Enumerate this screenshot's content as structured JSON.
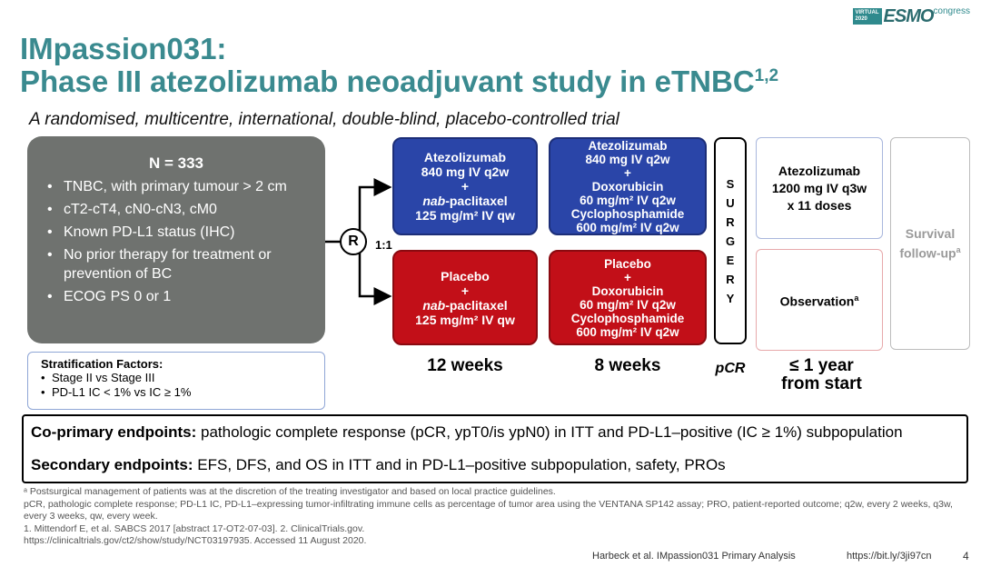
{
  "header": {
    "title_line1": "IMpassion031:",
    "title_line2": "Phase III atezolizumab neoadjuvant study in eTNBC",
    "title_sup": "1,2",
    "subtitle": "A randomised, multicentre, international, double-blind, placebo-controlled trial",
    "logo": {
      "tag_line1": "VIRTUAL",
      "tag_line2": "2020",
      "brand": "ESMO",
      "suffix": "congress"
    }
  },
  "patients": {
    "n": "N = 333",
    "criteria": [
      "TNBC, with primary tumour > 2 cm",
      "cT2-cT4, cN0-cN3, cM0",
      "Known PD-L1 status (IHC)",
      "No prior therapy for treatment or prevention of BC",
      "ECOG PS 0 or 1"
    ]
  },
  "stratification": {
    "heading": "Stratification Factors:",
    "items": [
      "Stage II vs Stage III",
      "PD-L1 IC < 1% vs IC ≥ 1%"
    ]
  },
  "randomisation": {
    "label": "R",
    "ratio": "1:1"
  },
  "arms": {
    "atezo_phase1": {
      "drug": "Atezolizumab",
      "dose": "840 mg IV q2w",
      "plus": "+",
      "drug2_italic": "nab",
      "drug2_rest": "-paclitaxel",
      "dose2": "125 mg/m² IV qw"
    },
    "atezo_phase2": {
      "drug": "Atezolizumab",
      "dose": "840 mg IV q2w",
      "plus": "+",
      "drug2": "Doxorubicin",
      "dose2": "60 mg/m² IV q2w",
      "drug3": "Cyclophosphamide",
      "dose3": "600 mg/m² IV q2w"
    },
    "placebo_phase1": {
      "drug": "Placebo",
      "plus": "+",
      "drug2_italic": "nab",
      "drug2_rest": "-paclitaxel",
      "dose2": "125 mg/m² IV qw"
    },
    "placebo_phase2": {
      "drug": "Placebo",
      "plus": "+",
      "drug2": "Doxorubicin",
      "dose2": "60 mg/m² IV q2w",
      "drug3": "Cyclophosphamide",
      "dose3": "600 mg/m² IV q2w"
    },
    "surgery_letters": [
      "S",
      "U",
      "R",
      "G",
      "E",
      "R",
      "Y"
    ],
    "atezo_adjuvant": {
      "line1": "Atezolizumab",
      "line2": "1200 mg IV q3w",
      "line3": "x 11 doses"
    },
    "observation": {
      "label": "Observation",
      "sup": "a"
    },
    "survival": {
      "line1": "Survival",
      "line2": "follow-up",
      "sup": "a"
    }
  },
  "durations": {
    "phase1": "12 weeks",
    "phase2": "8 weeks",
    "pcr": "pCR",
    "adjuvant_line1": "≤ 1 year",
    "adjuvant_line2": "from start"
  },
  "endpoints": {
    "primary_label": "Co-primary endpoints:",
    "primary_text": " pathologic complete response (pCR, ypT0/is ypN0) in ITT and PD-L1–positive (IC ≥ 1%) subpopulation",
    "secondary_label": "Secondary endpoints:",
    "secondary_text": " EFS, DFS, and OS in ITT and in PD-L1–positive subpopulation, safety, PROs"
  },
  "footnotes": {
    "a": "ᵃ Postsurgical management of patients was at the discretion of the treating investigator and based on local practice guidelines.",
    "abbr": "pCR, pathologic complete response; PD-L1 IC, PD-L1–expressing tumor-infiltrating immune cells as percentage of tumor area using the VENTANA SP142 assay; PRO, patient-reported outcome; q2w, every 2 weeks, q3w, every 3 weeks, qw, every week.",
    "refs": "1. Mittendorf E, et al. SABCS 2017 [abstract 17-OT2-07-03]. 2. ClinicalTrials.gov. https://clinicaltrials.gov/ct2/show/study/NCT03197935. Accessed 11 August 2020."
  },
  "footer": {
    "citation": "Harbeck et al. IMpassion031 Primary Analysis",
    "link": "https://bit.ly/3ji97cn",
    "page": "4"
  }
}
